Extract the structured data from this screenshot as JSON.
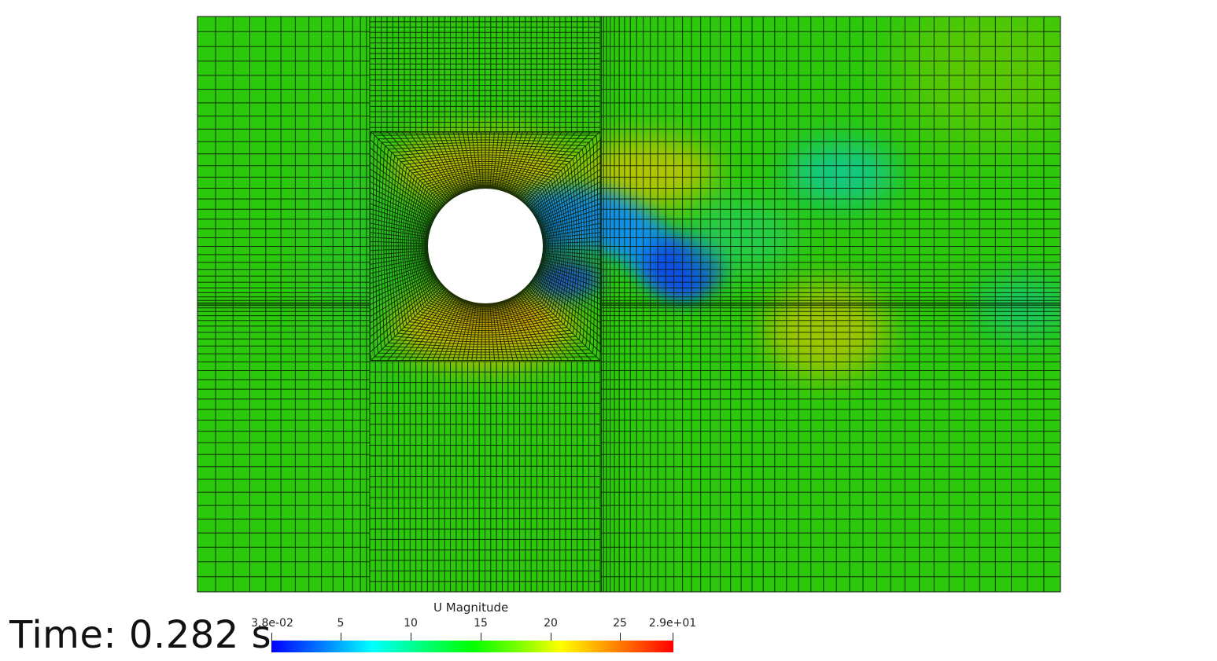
{
  "time_label": "Time: 0.282 s",
  "legend": {
    "title": "U Magnitude",
    "ticks": [
      "3.8e-02",
      "5",
      "10",
      "15",
      "20",
      "25",
      "2.9e+01"
    ],
    "tick_values": [
      0.038,
      5,
      10,
      15,
      20,
      25,
      29
    ],
    "range": [
      0.038,
      29
    ]
  },
  "colors": {
    "field_base": "#2ecc0b",
    "mesh_lines": "#0a1a05",
    "cylinder": "#ffffff",
    "low_velocity": "#0a2cff",
    "high_velocity": "#e6c200"
  }
}
